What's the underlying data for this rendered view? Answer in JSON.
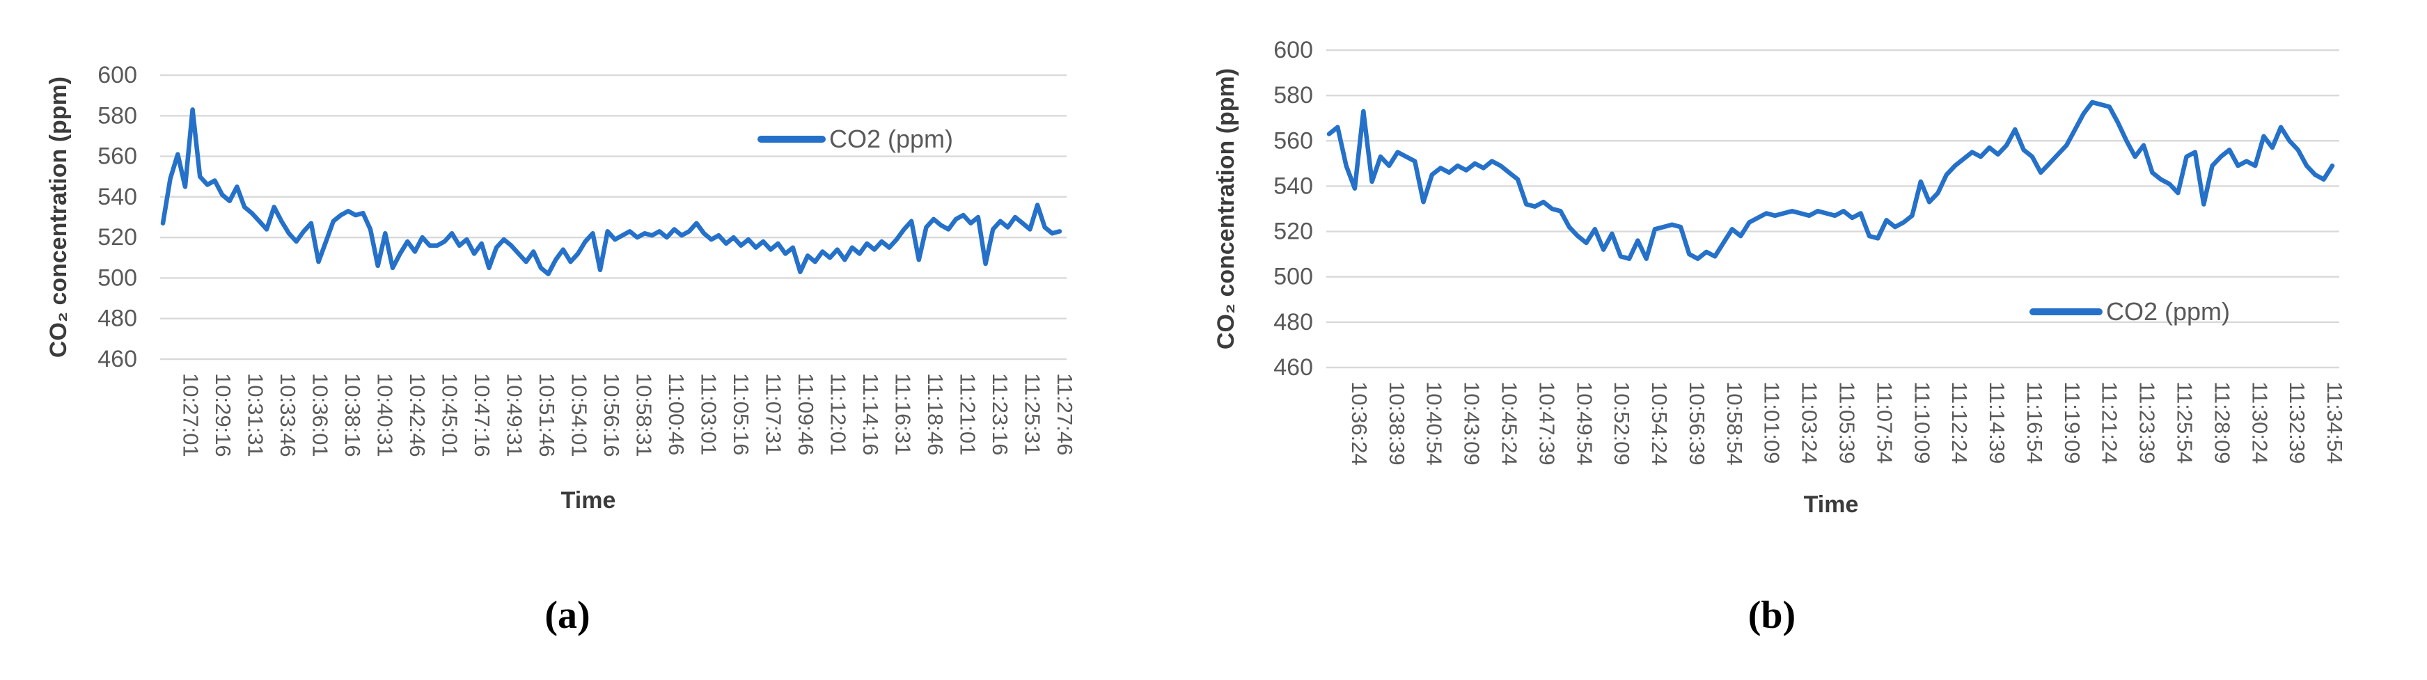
{
  "figure": {
    "captions": {
      "a": "(a)",
      "b": "(b)"
    }
  },
  "colors": {
    "line": "#2571C9",
    "grid": "#D9D9D9",
    "tick_text": "#595959",
    "axis_title": "#3B3B3B",
    "legend_text": "#595959",
    "background": "#FFFFFF"
  },
  "chart_data": [
    {
      "id": "a",
      "type": "line",
      "title": "",
      "grid": true,
      "y_axis": {
        "title": "CO₂ concentration (ppm)",
        "min": 460,
        "max": 600,
        "ticks": [
          600,
          580,
          560,
          540,
          520,
          500,
          480,
          460
        ]
      },
      "x_axis": {
        "title": "Time",
        "tick_labels": [
          "10:27:01",
          "10:29:16",
          "10:31:31",
          "10:33:46",
          "10:36:01",
          "10:38:16",
          "10:40:31",
          "10:42:46",
          "10:45:01",
          "10:47:16",
          "10:49:31",
          "10:51:46",
          "10:54:01",
          "10:56:16",
          "10:58:31",
          "11:00:46",
          "11:03:01",
          "11:05:16",
          "11:07:31",
          "11:09:46",
          "11:12:01",
          "11:14:16",
          "11:16:31",
          "11:18:46",
          "11:21:01",
          "11:23:16",
          "11:25:31",
          "11:27:46"
        ]
      },
      "legend": {
        "label": "CO2 (ppm)",
        "position": "inside-upper-right"
      },
      "series": [
        {
          "name": "CO2 (ppm)",
          "x_start": "10:27:01",
          "x_step_seconds": 30,
          "values": [
            527,
            549,
            561,
            545,
            583,
            550,
            546,
            548,
            541,
            538,
            545,
            535,
            532,
            528,
            524,
            535,
            528,
            522,
            518,
            523,
            527,
            508,
            518,
            528,
            531,
            533,
            531,
            532,
            524,
            506,
            522,
            505,
            512,
            518,
            513,
            520,
            516,
            516,
            518,
            522,
            516,
            519,
            512,
            517,
            505,
            515,
            519,
            516,
            512,
            508,
            513,
            505,
            502,
            509,
            514,
            508,
            512,
            518,
            522,
            504,
            523,
            519,
            521,
            523,
            520,
            522,
            521,
            523,
            520,
            524,
            521,
            523,
            527,
            522,
            519,
            521,
            517,
            520,
            516,
            519,
            515,
            518,
            514,
            517,
            512,
            515,
            503,
            511,
            508,
            513,
            510,
            514,
            509,
            515,
            512,
            517,
            514,
            518,
            515,
            519,
            524,
            528,
            509,
            525,
            529,
            526,
            524,
            529,
            531,
            527,
            530,
            507,
            524,
            528,
            525,
            530,
            527,
            524,
            536,
            525,
            522,
            523
          ]
        }
      ]
    },
    {
      "id": "b",
      "type": "line",
      "title": "",
      "grid": true,
      "y_axis": {
        "title": "CO₂ concentration (ppm)",
        "min": 460,
        "max": 600,
        "ticks": [
          600,
          580,
          560,
          540,
          520,
          500,
          480,
          460
        ]
      },
      "x_axis": {
        "title": "Time",
        "tick_labels": [
          "10:36:24",
          "10:38:39",
          "10:40:54",
          "10:43:09",
          "10:45:24",
          "10:47:39",
          "10:49:54",
          "10:52:09",
          "10:54:24",
          "10:56:39",
          "10:58:54",
          "11:01:09",
          "11:03:24",
          "11:05:39",
          "11:07:54",
          "11:10:09",
          "11:12:24",
          "11:14:39",
          "11:16:54",
          "11:19:09",
          "11:21:24",
          "11:23:39",
          "11:25:54",
          "11:28:09",
          "11:30:24",
          "11:32:39",
          "11:34:54"
        ]
      },
      "legend": {
        "label": "CO2 (ppm)",
        "position": "inside-lower-right"
      },
      "series": [
        {
          "name": "CO2 (ppm)",
          "x_start": "10:36:24",
          "x_step_seconds": 30,
          "values": [
            563,
            566,
            549,
            539,
            573,
            542,
            553,
            549,
            555,
            553,
            551,
            533,
            545,
            548,
            546,
            549,
            547,
            550,
            548,
            551,
            549,
            546,
            543,
            532,
            531,
            533,
            530,
            529,
            522,
            518,
            515,
            521,
            512,
            519,
            509,
            508,
            516,
            508,
            521,
            522,
            523,
            522,
            510,
            508,
            511,
            509,
            515,
            521,
            518,
            524,
            526,
            528,
            527,
            528,
            529,
            528,
            527,
            529,
            528,
            527,
            529,
            526,
            528,
            518,
            517,
            525,
            522,
            524,
            527,
            542,
            533,
            537,
            545,
            549,
            552,
            555,
            553,
            557,
            554,
            558,
            565,
            556,
            553,
            546,
            550,
            554,
            558,
            565,
            572,
            577,
            576,
            575,
            568,
            560,
            553,
            558,
            546,
            543,
            541,
            537,
            553,
            555,
            532,
            549,
            553,
            556,
            549,
            551,
            549,
            562,
            557,
            566,
            560,
            556,
            549,
            545,
            543,
            549
          ]
        }
      ]
    }
  ]
}
